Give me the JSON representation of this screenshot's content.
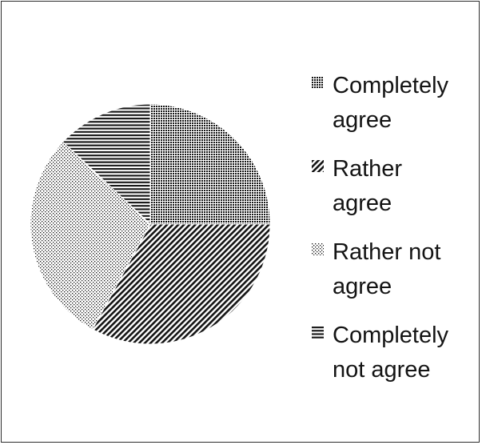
{
  "chart_data": {
    "type": "pie",
    "title": "",
    "series": [
      {
        "categories": [
          "Completely agree",
          "Rather agree",
          "Rather not agree",
          "Completely not agree"
        ],
        "values": [
          25,
          33,
          29,
          13
        ]
      }
    ],
    "legend": {
      "position": "right",
      "items": [
        {
          "line1": "Completely",
          "line2": "agree",
          "pattern": "dense-dots"
        },
        {
          "line1": "Rather",
          "line2": "agree",
          "pattern": "diagonal-lines"
        },
        {
          "line1": "Rather not",
          "line2": "agree",
          "pattern": "sparse-dots"
        },
        {
          "line1": "Completely",
          "line2": "not agree",
          "pattern": "horizontal-lines"
        }
      ]
    },
    "colors": {
      "ink": "#141414",
      "background": "#ffffff",
      "border": "#2b2b2b"
    }
  }
}
